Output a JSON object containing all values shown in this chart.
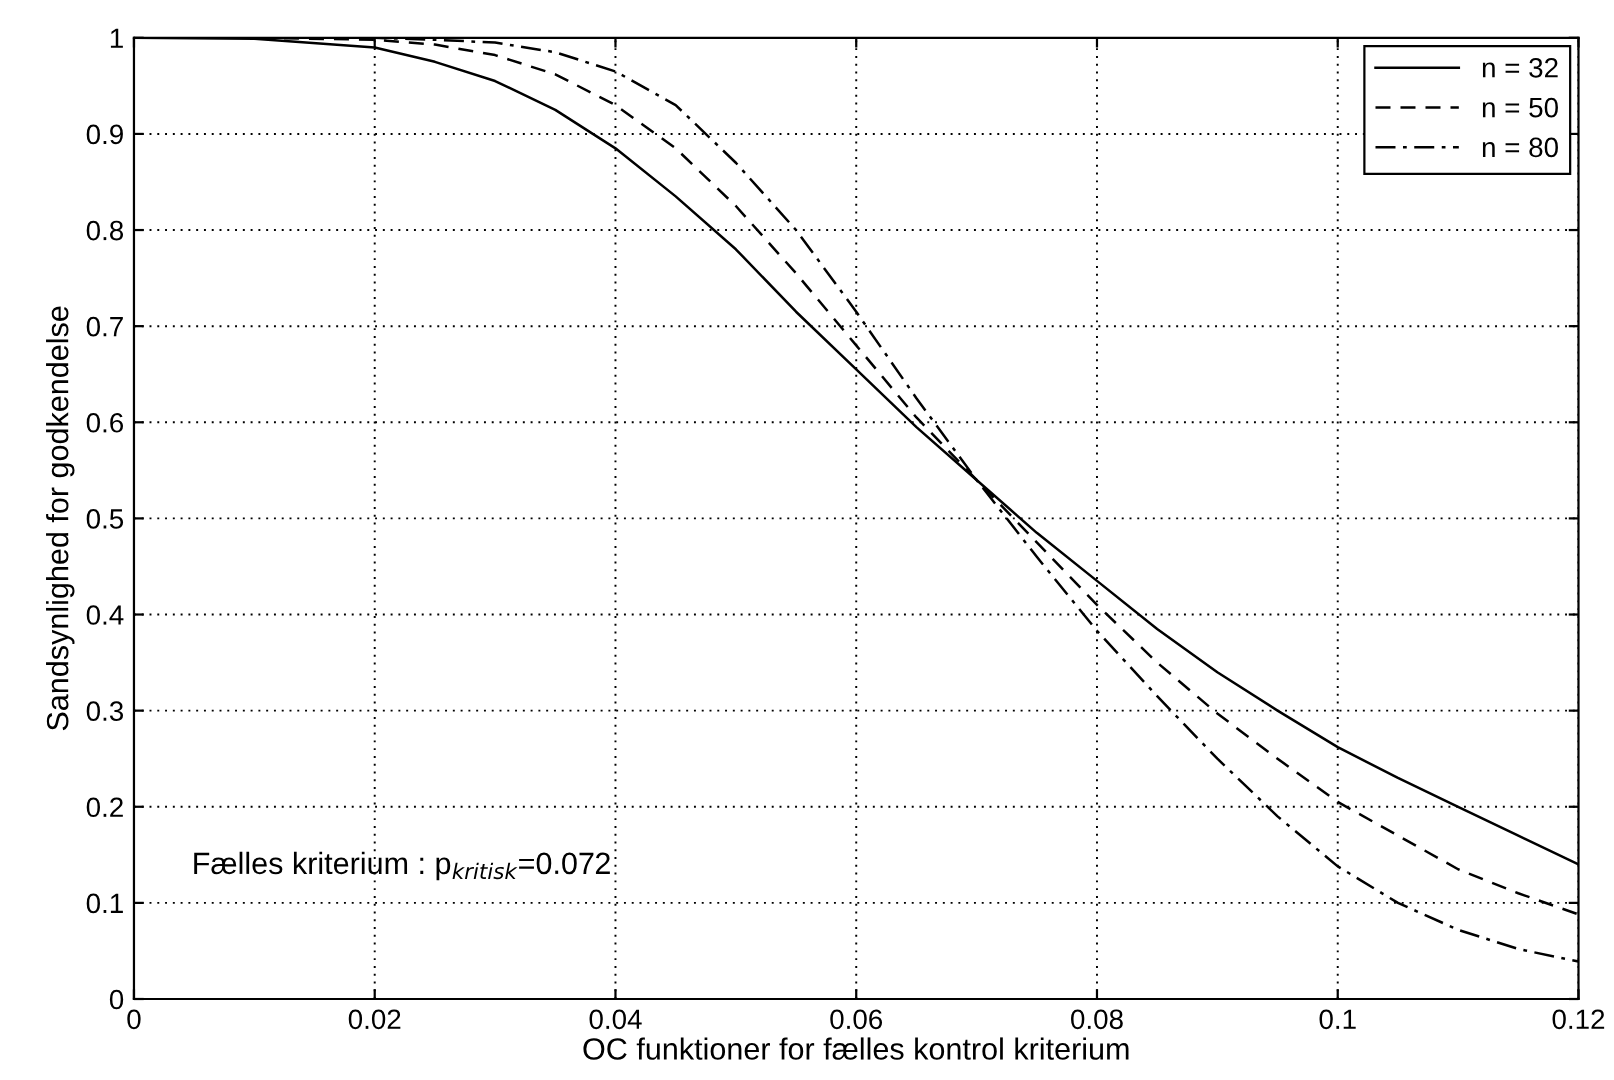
{
  "chart_data": {
    "type": "line",
    "xlabel": "OC funktioner for fælles kontrol kriterium",
    "ylabel": "Sandsynlighed for godkendelse",
    "x": [
      0,
      0.01,
      0.02,
      0.025,
      0.03,
      0.035,
      0.04,
      0.045,
      0.05,
      0.055,
      0.06,
      0.065,
      0.07,
      0.075,
      0.08,
      0.085,
      0.09,
      0.095,
      0.1,
      0.105,
      0.11,
      0.115,
      0.12
    ],
    "series": [
      {
        "name": "n = 32",
        "color": "#000000",
        "line_style": "solid",
        "values": [
          1,
          0.999,
          0.99,
          0.975,
          0.955,
          0.925,
          0.885,
          0.835,
          0.78,
          0.715,
          0.655,
          0.595,
          0.54,
          0.485,
          0.435,
          0.385,
          0.34,
          0.3,
          0.262,
          0.23,
          0.2,
          0.17,
          0.14
        ]
      },
      {
        "name": "n = 50",
        "color": "#000000",
        "line_style": "dashed",
        "values": [
          1,
          1,
          0.998,
          0.993,
          0.982,
          0.962,
          0.93,
          0.885,
          0.825,
          0.755,
          0.68,
          0.605,
          0.54,
          0.475,
          0.41,
          0.35,
          0.297,
          0.25,
          0.205,
          0.17,
          0.135,
          0.11,
          0.088
        ]
      },
      {
        "name": "n = 80",
        "color": "#000000",
        "line_style": "dashdot",
        "values": [
          1,
          1,
          1,
          0.998,
          0.995,
          0.985,
          0.965,
          0.93,
          0.87,
          0.8,
          0.715,
          0.625,
          0.54,
          0.46,
          0.383,
          0.315,
          0.25,
          0.19,
          0.138,
          0.1,
          0.072,
          0.052,
          0.039
        ]
      }
    ],
    "annotations": [
      "Fælles kriterium : p$_{kritisk}$=0.072"
    ],
    "xlim": [
      0,
      0.12
    ],
    "xticks": [
      0,
      0.02,
      0.04,
      0.06,
      0.08,
      0.1,
      0.12
    ],
    "ylim": [
      0,
      1
    ],
    "yticks": [
      0,
      0.1,
      0.2,
      0.3,
      0.4,
      0.5,
      0.6,
      0.7,
      0.8,
      0.9,
      1
    ],
    "grid": true,
    "legend": "top right"
  }
}
